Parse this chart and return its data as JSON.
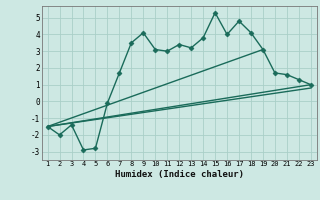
{
  "xlabel": "Humidex (Indice chaleur)",
  "xlim": [
    0.5,
    23.5
  ],
  "ylim": [
    -3.5,
    5.7
  ],
  "yticks": [
    -3,
    -2,
    -1,
    0,
    1,
    2,
    3,
    4,
    5
  ],
  "xticks": [
    1,
    2,
    3,
    4,
    5,
    6,
    7,
    8,
    9,
    10,
    11,
    12,
    13,
    14,
    15,
    16,
    17,
    18,
    19,
    20,
    21,
    22,
    23
  ],
  "bg_color": "#cde8e3",
  "line_color": "#1a6b5a",
  "grid_color": "#aacfc8",
  "lines": [
    {
      "x": [
        1,
        2,
        3,
        4,
        5,
        6,
        7,
        8,
        9,
        10,
        11,
        12,
        13,
        14,
        15,
        16,
        17,
        18,
        19,
        20,
        21,
        22,
        23
      ],
      "y": [
        -1.5,
        -2.0,
        -1.4,
        -2.9,
        -2.8,
        -0.1,
        1.7,
        3.5,
        4.1,
        3.1,
        3.0,
        3.4,
        3.2,
        3.8,
        5.3,
        4.0,
        4.8,
        4.1,
        3.1,
        1.7,
        1.6,
        1.3,
        1.0
      ],
      "marker": "D",
      "markersize": 2.5,
      "linewidth": 1.0
    },
    {
      "x": [
        1,
        19
      ],
      "y": [
        -1.5,
        3.1
      ],
      "marker": null,
      "markersize": 0,
      "linewidth": 1.0
    },
    {
      "x": [
        1,
        23
      ],
      "y": [
        -1.5,
        1.0
      ],
      "marker": null,
      "markersize": 0,
      "linewidth": 1.0
    },
    {
      "x": [
        1,
        23
      ],
      "y": [
        -1.5,
        0.8
      ],
      "marker": null,
      "markersize": 0,
      "linewidth": 1.0
    }
  ]
}
